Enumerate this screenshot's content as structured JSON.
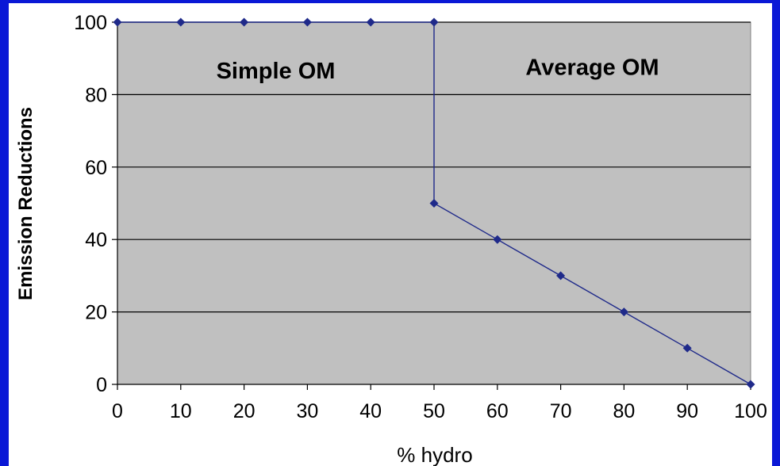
{
  "chart_data": {
    "type": "line",
    "xlabel": "% hydro",
    "ylabel": "Emission Reductions",
    "xlim": [
      0,
      100
    ],
    "ylim": [
      0,
      100
    ],
    "x_ticks": [
      0,
      10,
      20,
      30,
      40,
      50,
      60,
      70,
      80,
      90,
      100
    ],
    "y_ticks": [
      0,
      20,
      40,
      60,
      80,
      100
    ],
    "grid": true,
    "series": [
      {
        "points": [
          [
            0,
            100
          ],
          [
            10,
            100
          ],
          [
            20,
            100
          ],
          [
            30,
            100
          ],
          [
            40,
            100
          ],
          [
            50,
            100
          ],
          [
            50,
            50
          ],
          [
            60,
            40
          ],
          [
            70,
            30
          ],
          [
            80,
            20
          ],
          [
            90,
            10
          ],
          [
            100,
            0
          ]
        ],
        "markers": [
          [
            0,
            100
          ],
          [
            10,
            100
          ],
          [
            20,
            100
          ],
          [
            30,
            100
          ],
          [
            40,
            100
          ],
          [
            50,
            100
          ],
          [
            50,
            50
          ],
          [
            60,
            40
          ],
          [
            70,
            30
          ],
          [
            80,
            20
          ],
          [
            90,
            10
          ],
          [
            100,
            0
          ]
        ],
        "color": "#1f2a8a"
      }
    ],
    "annotations": [
      {
        "id": "simple-om",
        "text": "Simple OM",
        "x": 25,
        "y": 84.5
      },
      {
        "id": "average-om",
        "text": "Average OM",
        "x": 75,
        "y": 85.5
      }
    ],
    "plot_background": "#c0c0c0",
    "background": "#0a18d6"
  }
}
